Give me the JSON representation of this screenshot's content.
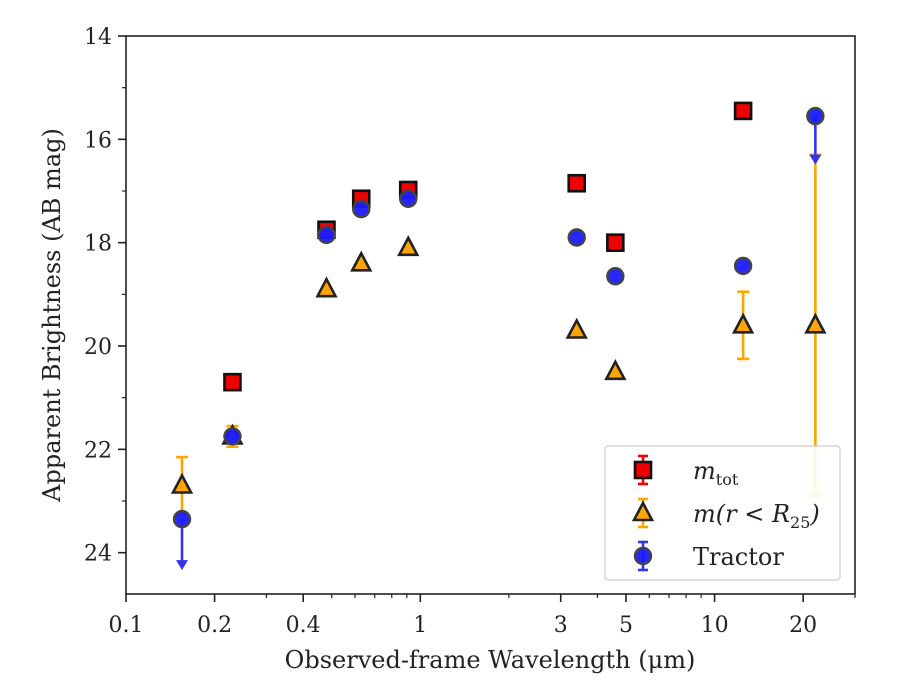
{
  "chart_data": {
    "type": "scatter",
    "xscale": "log",
    "yaxis_inverted": true,
    "xlim": [
      0.1,
      30
    ],
    "ylim": [
      24.8,
      14
    ],
    "xlabel": "Observed-frame Wavelength (μm)",
    "ylabel": "Apparent Brightness (AB mag)",
    "xticks": [
      {
        "value": 0.1,
        "label": "0.1"
      },
      {
        "value": 0.2,
        "label": "0.2"
      },
      {
        "value": 0.4,
        "label": "0.4"
      },
      {
        "value": 1,
        "label": "1"
      },
      {
        "value": 3,
        "label": "3"
      },
      {
        "value": 5,
        "label": "5"
      },
      {
        "value": 10,
        "label": "10"
      },
      {
        "value": 20,
        "label": "20"
      }
    ],
    "yticks": [
      {
        "value": 14,
        "label": "14"
      },
      {
        "value": 16,
        "label": "16"
      },
      {
        "value": 18,
        "label": "18"
      },
      {
        "value": 20,
        "label": "20"
      },
      {
        "value": 22,
        "label": "22"
      },
      {
        "value": 24,
        "label": "24"
      }
    ],
    "legend_position": "lower-right",
    "series": [
      {
        "name": "m_tot",
        "legend_main": "m",
        "legend_sub": "tot",
        "marker": "square",
        "color": "#ee0000",
        "errcolor": "#ee0000",
        "points": [
          {
            "x": 0.23,
            "y": 20.7
          },
          {
            "x": 0.48,
            "y": 17.75
          },
          {
            "x": 0.63,
            "y": 17.15
          },
          {
            "x": 0.91,
            "y": 16.98
          },
          {
            "x": 3.4,
            "y": 16.85
          },
          {
            "x": 4.6,
            "y": 18.0
          },
          {
            "x": 12.5,
            "y": 15.45
          }
        ]
      },
      {
        "name": "m(r < R25)",
        "legend_main": "m(r < R",
        "legend_sub": "25",
        "legend_tail": ")",
        "marker": "triangle",
        "color": "#ffa500",
        "errcolor": "#ffa500",
        "points": [
          {
            "x": 0.155,
            "y": 22.7,
            "err": 0.55
          },
          {
            "x": 0.23,
            "y": 21.75,
            "err": 0.2
          },
          {
            "x": 0.48,
            "y": 18.9
          },
          {
            "x": 0.63,
            "y": 18.4
          },
          {
            "x": 0.91,
            "y": 18.1
          },
          {
            "x": 3.4,
            "y": 19.7
          },
          {
            "x": 4.6,
            "y": 20.5
          },
          {
            "x": 12.5,
            "y": 19.6,
            "err": 0.65
          },
          {
            "x": 22.0,
            "y": 19.6,
            "err_low": 16.3,
            "err_high": 22.9
          }
        ]
      },
      {
        "name": "Tractor",
        "legend_main": "Tractor",
        "marker": "circle",
        "color": "#1a1aff",
        "errcolor": "#3333ee",
        "points": [
          {
            "x": 0.155,
            "y": 23.35,
            "upper_limit_to": 24.3
          },
          {
            "x": 0.23,
            "y": 21.75
          },
          {
            "x": 0.48,
            "y": 17.85
          },
          {
            "x": 0.63,
            "y": 17.35
          },
          {
            "x": 0.91,
            "y": 17.15
          },
          {
            "x": 3.4,
            "y": 17.9
          },
          {
            "x": 4.6,
            "y": 18.65
          },
          {
            "x": 12.5,
            "y": 18.45
          },
          {
            "x": 22.0,
            "y": 15.55,
            "upper_limit_to": 16.45
          }
        ]
      }
    ]
  }
}
